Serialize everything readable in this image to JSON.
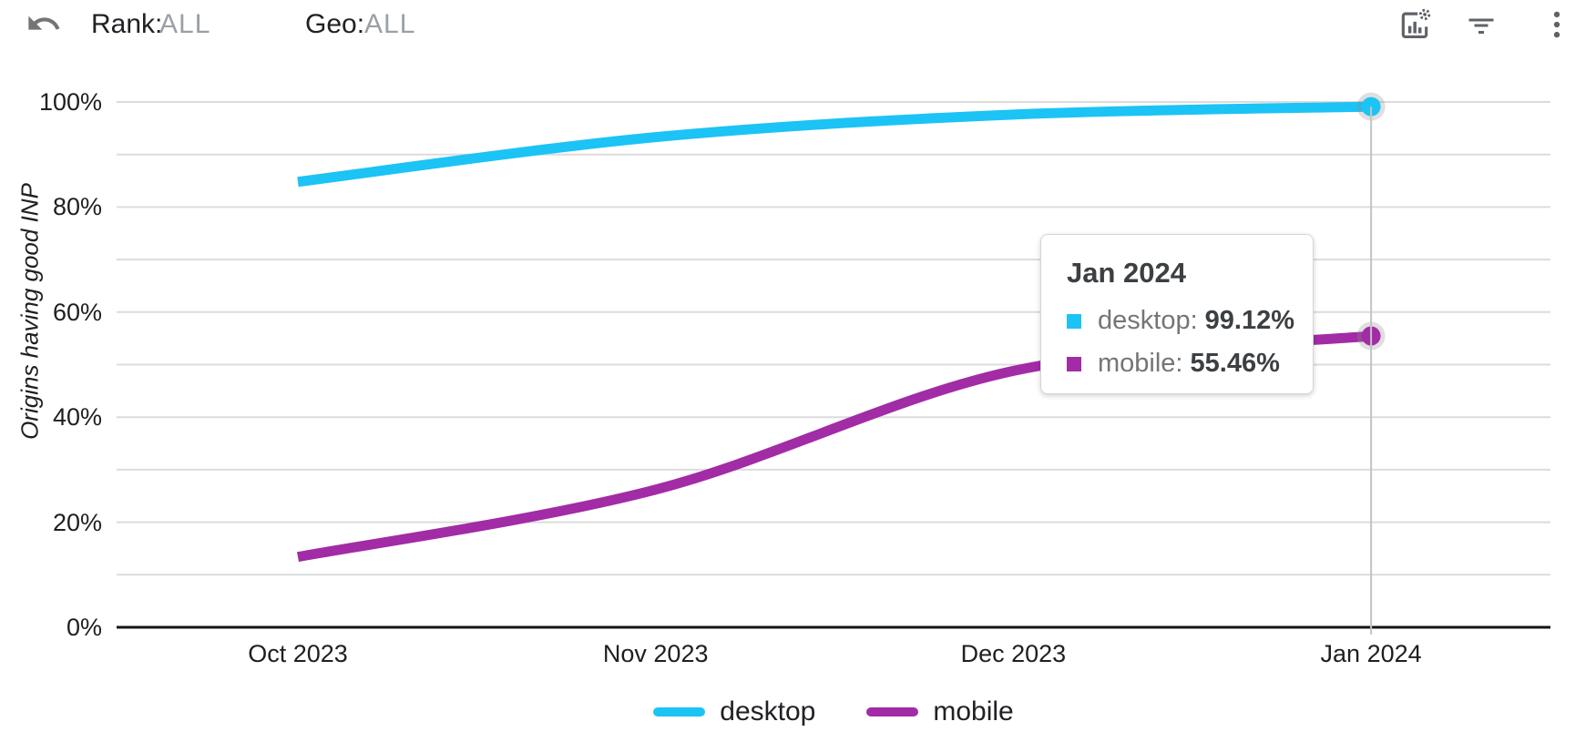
{
  "header": {
    "rank_label": "Rank:",
    "rank_value": "ALL",
    "geo_label": "Geo:",
    "geo_value": "ALL"
  },
  "toolbar": {
    "icons": [
      "undo-icon",
      "chart-options-icon",
      "filter-icon",
      "more-menu-icon"
    ]
  },
  "chart_data": {
    "type": "line",
    "title": "",
    "ylabel": "Origins having good INP",
    "xlabel": "",
    "categories": [
      "Oct 2023",
      "Nov 2023",
      "Dec 2023",
      "Jan 2024"
    ],
    "series": [
      {
        "name": "desktop",
        "color": "#1cc3f5",
        "values": [
          84.8,
          93.3,
          97.6,
          99.12
        ]
      },
      {
        "name": "mobile",
        "color": "#a22ba6",
        "values": [
          13.4,
          26.2,
          48.8,
          55.46
        ]
      }
    ],
    "ylim": [
      0,
      100
    ],
    "grid": true,
    "grid_step_pct": 10,
    "y_tick_labels": [
      "100%",
      "80%",
      "60%",
      "40%",
      "20%",
      "0%"
    ],
    "legend_position": "bottom",
    "highlighted_x": "Jan 2024"
  },
  "tooltip": {
    "title": "Jan 2024",
    "items": [
      {
        "label": "desktop:",
        "value": "99.12%",
        "color": "#1cc3f5"
      },
      {
        "label": "mobile:",
        "value": "55.46%",
        "color": "#a22ba6"
      }
    ]
  },
  "colors": {
    "gridline": "#dcdcdc",
    "axis": "#141414",
    "crosshair": "#c4c4c4",
    "icon": "#5f6368"
  }
}
